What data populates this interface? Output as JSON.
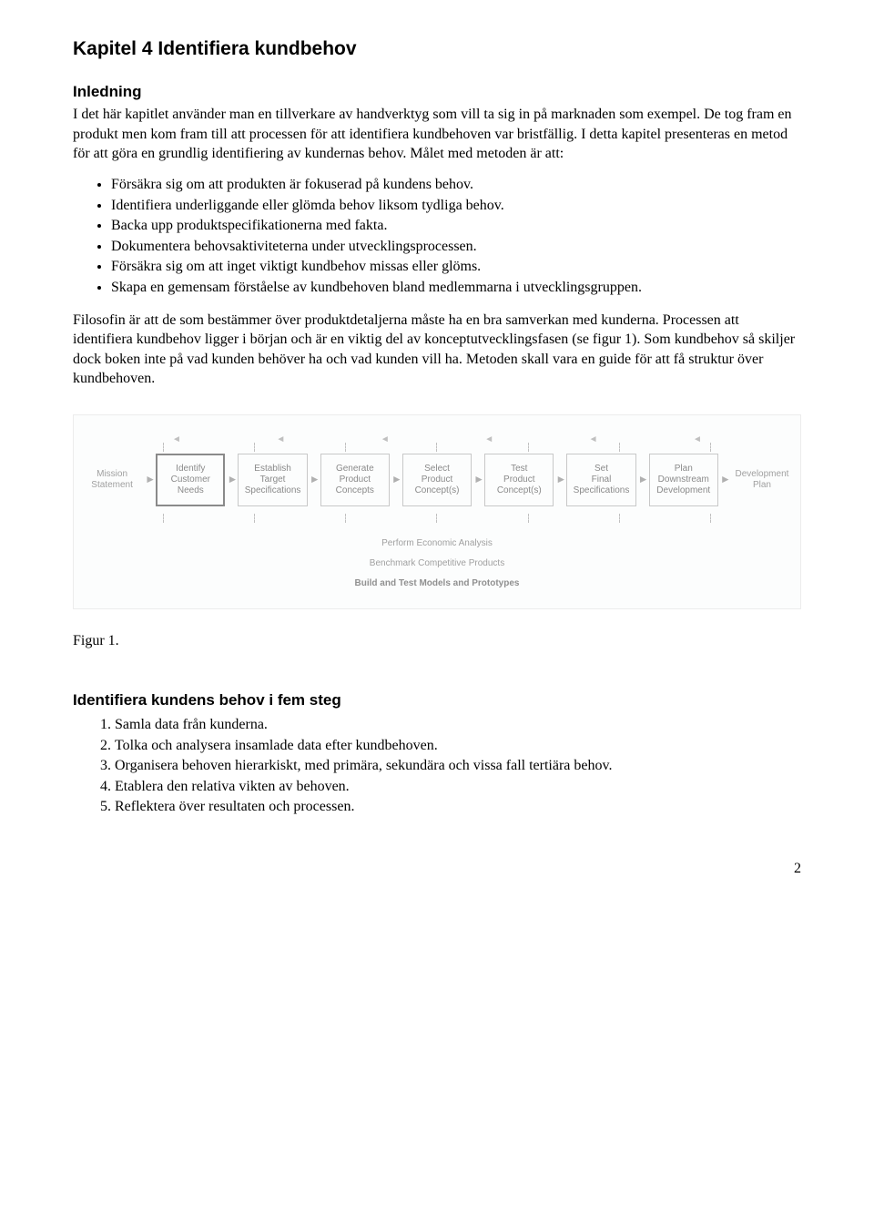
{
  "chapter_title": "Kapitel 4 Identifiera kundbehov",
  "intro": {
    "heading": "Inledning",
    "para1": "I det här kapitlet använder man en tillverkare av handverktyg som vill ta sig in på marknaden som exempel. De tog fram en produkt men kom fram till att processen för att identifiera kundbehoven var bristfällig. I detta kapitel presenteras en metod för att göra en grundlig identifiering av kundernas behov. Målet med metoden är att:",
    "bullets": [
      "Försäkra sig om att produkten är fokuserad på kundens behov.",
      "Identifiera underliggande eller glömda behov liksom tydliga behov.",
      "Backa upp produktspecifikationerna med fakta.",
      "Dokumentera behovsaktiviteterna under utvecklingsprocessen.",
      "Försäkra sig om att inget viktigt kundbehov missas eller glöms.",
      "Skapa en gemensam förståelse av kundbehoven bland medlemmarna i utvecklingsgruppen."
    ],
    "para2": "Filosofin är att de som bestämmer över produktdetaljerna måste ha en bra samverkan med kunderna. Processen att identifiera kundbehov ligger i början och är en viktig del av konceptutvecklingsfasen (se figur 1). Som kundbehov så skiljer dock boken inte på vad kunden behöver ha och vad kunden vill ha. Metoden skall vara en guide för att få struktur över kundbehoven."
  },
  "figure": {
    "left_label": "Mission\nStatement",
    "boxes": [
      "Identify\nCustomer\nNeeds",
      "Establish\nTarget\nSpecifications",
      "Generate\nProduct\nConcepts",
      "Select\nProduct\nConcept(s)",
      "Test\nProduct\nConcept(s)",
      "Set\nFinal\nSpecifications",
      "Plan\nDownstream\nDevelopment"
    ],
    "right_label": "Development\nPlan",
    "sub1": "Perform Economic Analysis",
    "sub2": "Benchmark Competitive Products",
    "sub3": "Build and Test Models and Prototypes",
    "caption": "Figur 1."
  },
  "steps": {
    "heading": "Identifiera kundens behov i fem steg",
    "items": [
      "Samla data från kunderna.",
      "Tolka och analysera insamlade data efter kundbehoven.",
      "Organisera behoven hierarkiskt, med primära, sekundära och vissa fall tertiära behov.",
      "Etablera den relativa vikten av behoven.",
      "Reflektera över resultaten och processen."
    ]
  },
  "page_number": "2"
}
